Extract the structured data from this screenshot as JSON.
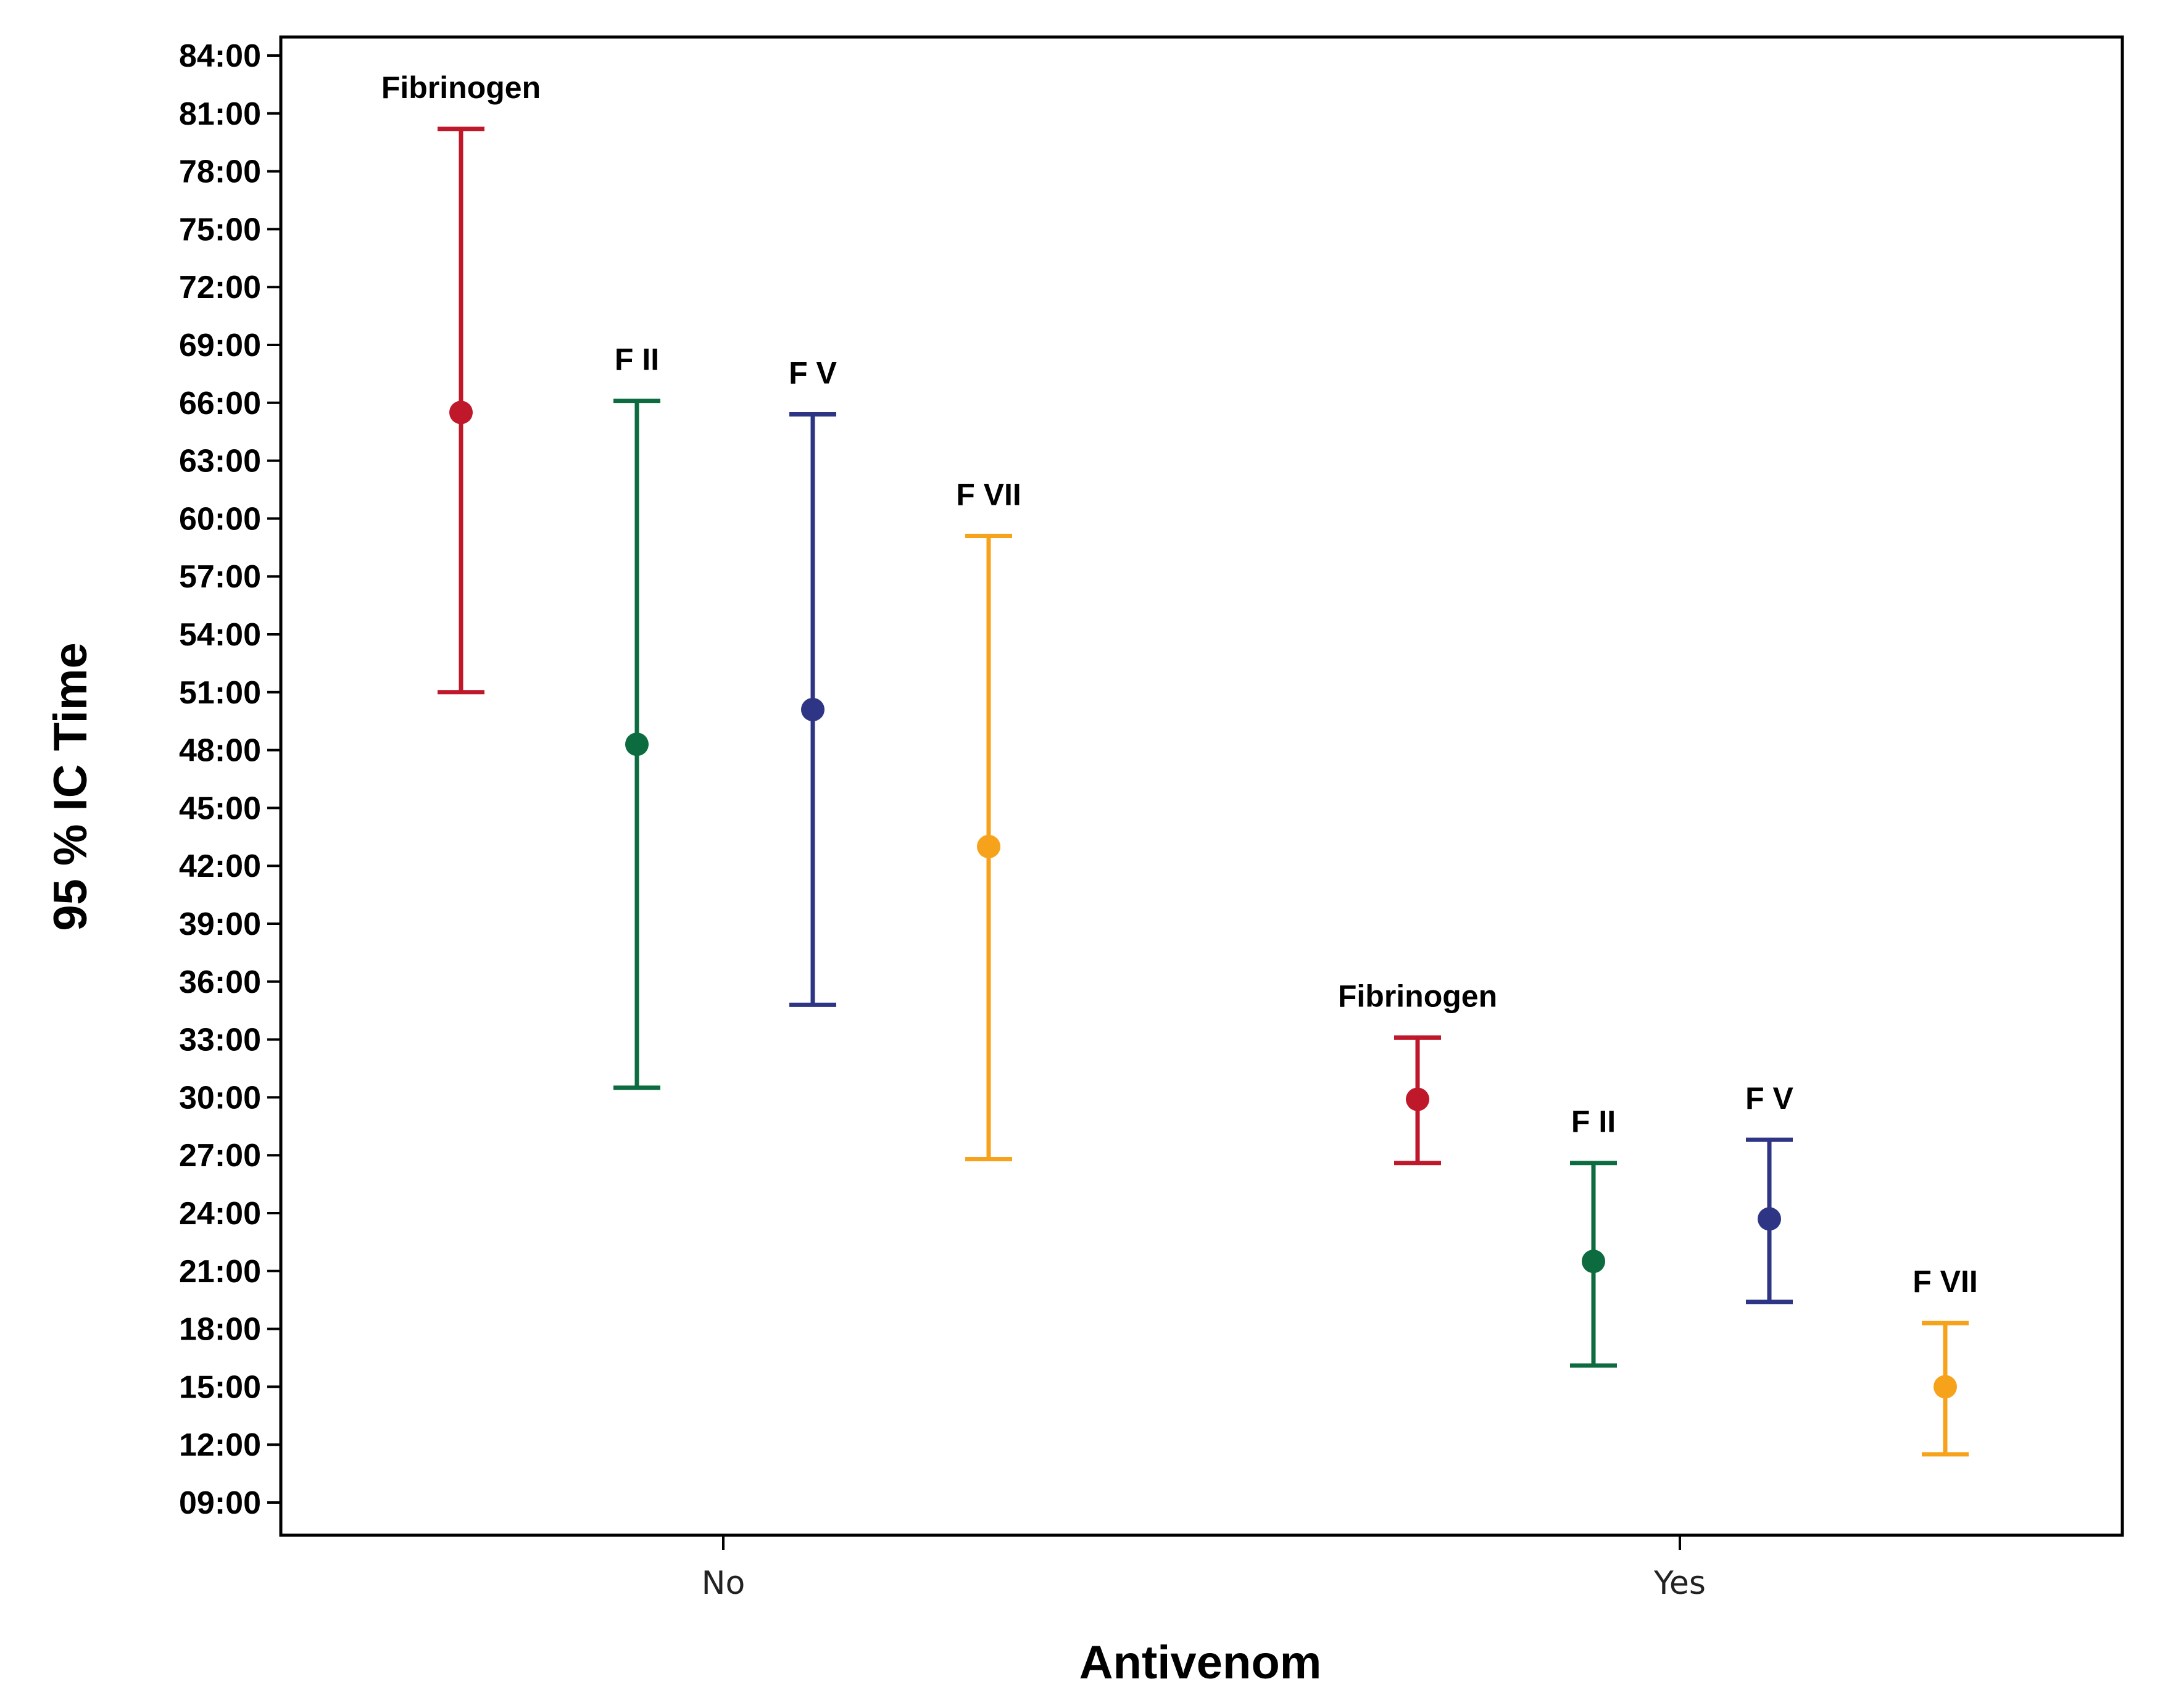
{
  "chart_data": {
    "type": "errorbar",
    "title": "",
    "xlabel": "Antivenom",
    "ylabel": "95 % IC Time",
    "categories": [
      "No",
      "Yes"
    ],
    "y_ticks": [
      "09:00",
      "12:00",
      "15:00",
      "18:00",
      "21:00",
      "24:00",
      "27:00",
      "30:00",
      "33:00",
      "36:00",
      "39:00",
      "42:00",
      "45:00",
      "48:00",
      "51:00",
      "54:00",
      "57:00",
      "60:00",
      "63:00",
      "66:00",
      "69:00",
      "72:00",
      "75:00",
      "78:00",
      "81:00",
      "84:00"
    ],
    "ylim_hours": [
      7.1,
      85.0
    ],
    "grid": false,
    "series": [
      {
        "name": "Fibrinogen",
        "label": "Fibrinogen",
        "color": "#c0182b",
        "points": [
          {
            "category": "No",
            "mean": 65.5,
            "lower": 51.0,
            "upper": 80.2
          },
          {
            "category": "Yes",
            "mean": 29.9,
            "lower": 26.6,
            "upper": 33.1
          }
        ]
      },
      {
        "name": "F II",
        "label": "F II",
        "color": "#0c6b3f",
        "points": [
          {
            "category": "No",
            "mean": 48.3,
            "lower": 30.5,
            "upper": 66.1
          },
          {
            "category": "Yes",
            "mean": 21.5,
            "lower": 16.1,
            "upper": 26.6
          }
        ]
      },
      {
        "name": "F V",
        "label": "F V",
        "color": "#2e3585",
        "points": [
          {
            "category": "No",
            "mean": 50.1,
            "lower": 34.8,
            "upper": 65.4
          },
          {
            "category": "Yes",
            "mean": 23.7,
            "lower": 19.4,
            "upper": 27.8
          }
        ]
      },
      {
        "name": "F VII",
        "label": "F VII",
        "color": "#f7a21b",
        "points": [
          {
            "category": "No",
            "mean": 43.0,
            "lower": 26.8,
            "upper": 59.1
          },
          {
            "category": "Yes",
            "mean": 15.0,
            "lower": 11.5,
            "upper": 18.3
          }
        ]
      }
    ]
  }
}
